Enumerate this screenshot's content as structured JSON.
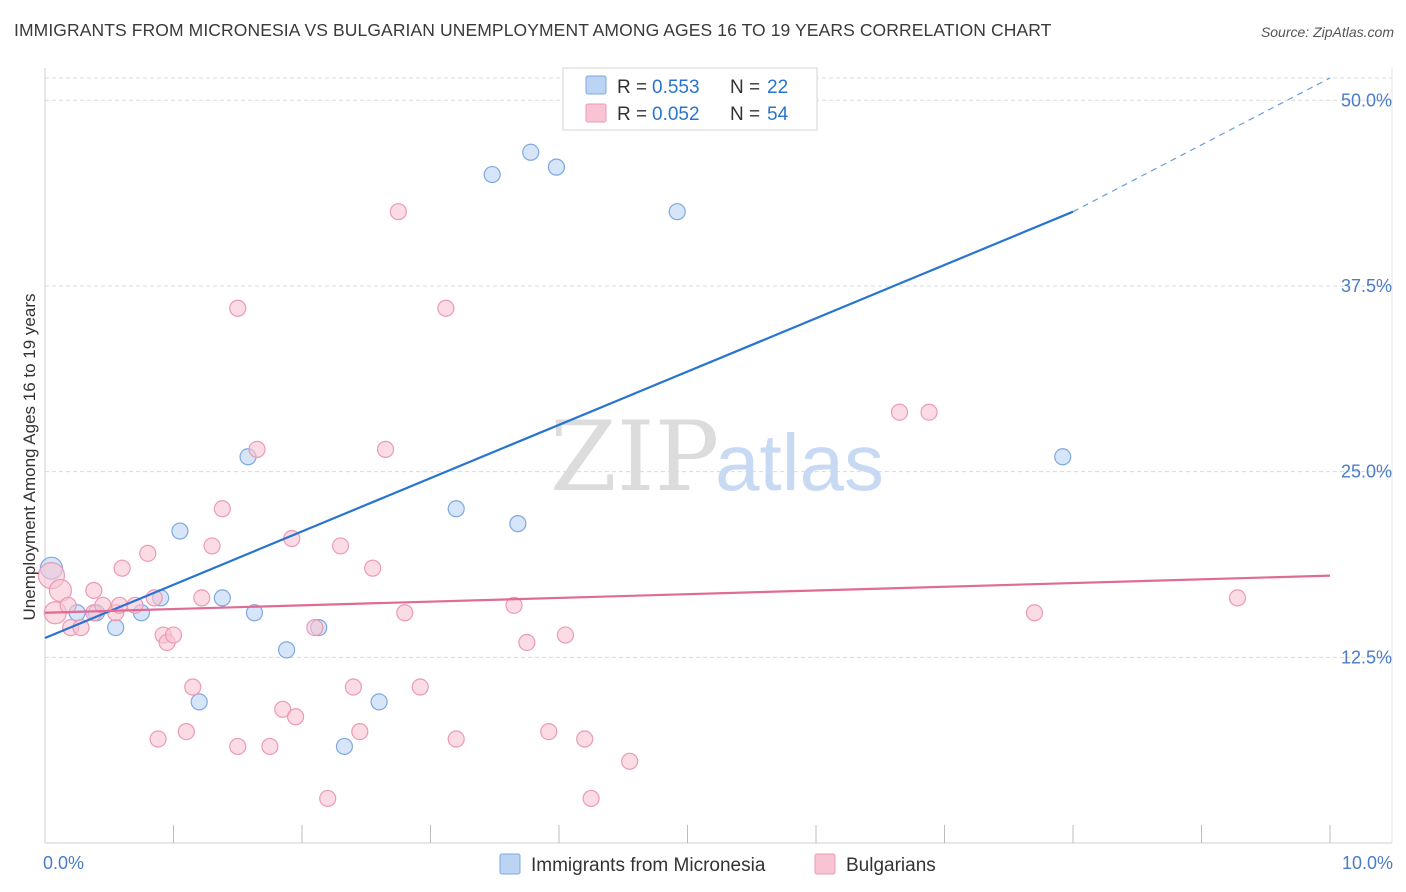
{
  "title": "IMMIGRANTS FROM MICRONESIA VS BULGARIAN UNEMPLOYMENT AMONG AGES 16 TO 19 YEARS CORRELATION CHART",
  "source": "Source: ZipAtlas.com",
  "watermark": {
    "zip": "ZIP",
    "atlas": "atlas"
  },
  "colors": {
    "blue": "#2a74d1",
    "blue_fill": "#bcd4f3",
    "blue_stroke": "#7fa8e0",
    "pink": "#e06b96",
    "pink_fill": "#f8c4d4",
    "pink_stroke": "#eb9ab5",
    "tick_text": "#4a7cc9",
    "grid": "#d9d9d9"
  },
  "legend": {
    "rows": [
      {
        "r_label": "R = ",
        "r_value": "0.553",
        "n_label": "N = ",
        "n_value": "22"
      },
      {
        "r_label": "R = ",
        "r_value": "0.052",
        "n_label": "N = ",
        "n_value": "54"
      }
    ]
  },
  "chart_data": {
    "type": "scatter",
    "title": "IMMIGRANTS FROM MICRONESIA VS BULGARIAN UNEMPLOYMENT AMONG AGES 16 TO 19 YEARS CORRELATION CHART",
    "xlabel": "",
    "ylabel": "Unemployment Among Ages 16 to 19 years",
    "xlim": [
      0,
      10
    ],
    "ylim": [
      0,
      51.5
    ],
    "x_tick_labels": [
      "0.0%",
      "10.0%"
    ],
    "x_ticks": [
      0,
      10
    ],
    "x_minor_ticks": [
      1,
      2,
      3,
      4,
      5,
      6,
      7,
      8,
      9,
      10
    ],
    "y_ticks": [
      12.5,
      25.0,
      37.5,
      50.0
    ],
    "y_tick_labels": [
      "12.5%",
      "25.0%",
      "37.5%",
      "50.0%"
    ],
    "grid": true,
    "legend_position": "top-center",
    "series": [
      {
        "name": "Immigrants from Micronesia",
        "color": "blue",
        "r": 0.553,
        "n": 22,
        "trend": {
          "x0": 0,
          "y0": 13.8,
          "x1": 8.0,
          "y1": 42.5,
          "dash_to_x": 10,
          "dash_to_y": 51.5
        },
        "points": [
          [
            0.05,
            18.5,
            22
          ],
          [
            0.25,
            15.5,
            16
          ],
          [
            0.4,
            15.5,
            16
          ],
          [
            0.55,
            14.5,
            16
          ],
          [
            0.75,
            15.5,
            16
          ],
          [
            0.9,
            16.5,
            16
          ],
          [
            1.05,
            21.0,
            16
          ],
          [
            1.2,
            9.5,
            16
          ],
          [
            1.38,
            16.5,
            16
          ],
          [
            1.58,
            26.0,
            16
          ],
          [
            1.63,
            15.5,
            16
          ],
          [
            1.88,
            13.0,
            16
          ],
          [
            2.13,
            14.5,
            16
          ],
          [
            2.33,
            6.5,
            16
          ],
          [
            2.6,
            9.5,
            16
          ],
          [
            3.2,
            22.5,
            16
          ],
          [
            3.48,
            45.0,
            16
          ],
          [
            3.68,
            21.5,
            16
          ],
          [
            3.78,
            46.5,
            16
          ],
          [
            3.98,
            45.5,
            16
          ],
          [
            4.92,
            42.5,
            16
          ],
          [
            7.92,
            26.0,
            16
          ]
        ]
      },
      {
        "name": "Bulgarians",
        "color": "pink",
        "r": 0.052,
        "n": 54,
        "trend": {
          "x0": 0,
          "y0": 15.5,
          "x1": 10,
          "y1": 18.0
        },
        "points": [
          [
            0.05,
            18.0,
            26
          ],
          [
            0.12,
            17.0,
            22
          ],
          [
            0.08,
            15.5,
            22
          ],
          [
            0.2,
            14.5,
            16
          ],
          [
            0.28,
            14.5,
            16
          ],
          [
            0.38,
            15.5,
            16
          ],
          [
            0.38,
            17.0,
            16
          ],
          [
            0.45,
            16.0,
            16
          ],
          [
            0.55,
            15.5,
            16
          ],
          [
            0.6,
            18.5,
            16
          ],
          [
            0.58,
            16.0,
            16
          ],
          [
            0.7,
            16.0,
            16
          ],
          [
            0.8,
            19.5,
            16
          ],
          [
            0.85,
            16.5,
            16
          ],
          [
            0.92,
            14.0,
            16
          ],
          [
            0.88,
            7.0,
            16
          ],
          [
            0.95,
            13.5,
            16
          ],
          [
            1.0,
            14.0,
            16
          ],
          [
            1.1,
            7.5,
            16
          ],
          [
            1.15,
            10.5,
            16
          ],
          [
            1.22,
            16.5,
            16
          ],
          [
            1.3,
            20.0,
            16
          ],
          [
            1.38,
            22.5,
            16
          ],
          [
            1.5,
            36.0,
            16
          ],
          [
            1.5,
            6.5,
            16
          ],
          [
            1.65,
            26.5,
            16
          ],
          [
            1.75,
            6.5,
            16
          ],
          [
            1.85,
            9.0,
            16
          ],
          [
            1.92,
            20.5,
            16
          ],
          [
            1.95,
            8.5,
            16
          ],
          [
            2.1,
            14.5,
            16
          ],
          [
            2.2,
            3.0,
            16
          ],
          [
            2.3,
            20.0,
            16
          ],
          [
            2.4,
            10.5,
            16
          ],
          [
            2.45,
            7.5,
            16
          ],
          [
            2.55,
            18.5,
            16
          ],
          [
            2.65,
            26.5,
            16
          ],
          [
            2.75,
            42.5,
            16
          ],
          [
            2.8,
            15.5,
            16
          ],
          [
            2.92,
            10.5,
            16
          ],
          [
            3.12,
            36.0,
            16
          ],
          [
            3.2,
            7.0,
            16
          ],
          [
            3.65,
            16.0,
            16
          ],
          [
            3.75,
            13.5,
            16
          ],
          [
            3.92,
            7.5,
            16
          ],
          [
            4.05,
            14.0,
            16
          ],
          [
            4.2,
            7.0,
            16
          ],
          [
            4.25,
            3.0,
            16
          ],
          [
            4.55,
            5.5,
            16
          ],
          [
            6.65,
            29.0,
            16
          ],
          [
            6.88,
            29.0,
            16
          ],
          [
            7.7,
            15.5,
            16
          ],
          [
            9.28,
            16.5,
            16
          ],
          [
            0.18,
            16.0,
            16
          ]
        ]
      }
    ]
  },
  "bottom_legend": [
    {
      "label": "Immigrants from Micronesia",
      "color": "blue"
    },
    {
      "label": "Bulgarians",
      "color": "pink"
    }
  ]
}
